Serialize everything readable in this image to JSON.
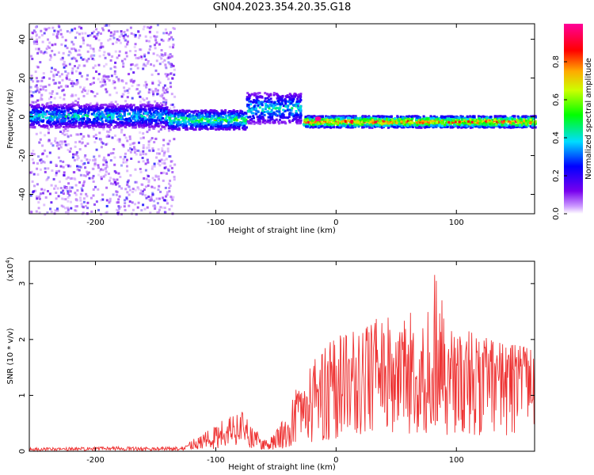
{
  "figure": {
    "title": "GN04.2023.354.20.35.G18"
  },
  "chart_data": [
    {
      "type": "heatmap",
      "title": "GN04.2023.354.20.35.G18",
      "xlabel": "Height of straight line (km)",
      "ylabel": "Frequency (Hz)",
      "xlim": [
        -255,
        165
      ],
      "ylim": [
        -50,
        48
      ],
      "x_ticks": [
        -200,
        -100,
        0,
        100
      ],
      "x_tick_labels": [
        "-200",
        "-100",
        "0",
        "100"
      ],
      "y_ticks": [
        -40,
        -20,
        0,
        20,
        40
      ],
      "y_tick_labels": [
        "-40",
        "-20",
        "0",
        "20",
        "40"
      ],
      "colorbar": {
        "label": "Normalized spectral amplitude",
        "range": [
          0,
          1
        ],
        "ticks": [
          0.0,
          0.2,
          0.4,
          0.6,
          0.8
        ],
        "tick_labels": [
          "0.0",
          "0.2",
          "0.4",
          "0.6",
          "0.8"
        ],
        "colormap": "rainbow (purple-blue-cyan-green-yellow-red-magenta)"
      },
      "main_band": {
        "description": "signal trace centered near 0 Hz",
        "segments": [
          {
            "x": [
              -255,
              -140
            ],
            "center_hz": 1,
            "halfwidth_hz": 6,
            "amplitude": [
              0.2,
              0.5
            ]
          },
          {
            "x": [
              -140,
              -75
            ],
            "center_hz": -1,
            "halfwidth_hz": 5,
            "amplitude": [
              0.3,
              0.6
            ]
          },
          {
            "x": [
              -75,
              -30
            ],
            "center_hz": 5,
            "halfwidth_hz": 8,
            "amplitude": [
              0.2,
              0.5
            ]
          },
          {
            "x": [
              -28,
              165
            ],
            "center_hz": -2,
            "halfwidth_hz": 3,
            "amplitude": [
              0.4,
              1.0
            ]
          }
        ],
        "peak": {
          "x": -15,
          "y": -1,
          "amplitude": 1.0
        }
      },
      "noise_region": {
        "x": [
          -255,
          -135
        ],
        "y": [
          -50,
          48
        ],
        "amplitude": [
          0.0,
          0.25
        ]
      },
      "grid": false
    },
    {
      "type": "line",
      "xlabel": "Height of straight line (km)",
      "ylabel": "SNR (10 * v/v)",
      "multiplier": "(x10",
      "multiplier_exp": "4",
      "multiplier_close": ")",
      "xlim": [
        -255,
        165
      ],
      "ylim": [
        0,
        3.4
      ],
      "x_ticks": [
        -200,
        -100,
        0,
        100
      ],
      "x_tick_labels": [
        "-200",
        "-100",
        "0",
        "100"
      ],
      "y_ticks": [
        0,
        1,
        2,
        3
      ],
      "y_tick_labels": [
        "0",
        "1",
        "2",
        "3"
      ],
      "series": [
        {
          "color": "#ee3333",
          "x": [
            -255,
            -220,
            -180,
            -150,
            -130,
            -120,
            -100,
            -90,
            -80,
            -70,
            -60,
            -50,
            -40,
            -30,
            -20,
            -10,
            0,
            10,
            20,
            30,
            40,
            50,
            60,
            70,
            80,
            90,
            100,
            110,
            120,
            130,
            140,
            150,
            160,
            165
          ],
          "y": [
            0.03,
            0.04,
            0.05,
            0.04,
            0.05,
            0.1,
            0.2,
            0.3,
            0.35,
            0.25,
            0.1,
            0.15,
            0.3,
            0.55,
            0.8,
            0.95,
            1.1,
            1.3,
            1.15,
            1.4,
            1.3,
            1.45,
            1.55,
            1.3,
            1.5,
            1.35,
            1.45,
            1.35,
            1.3,
            1.4,
            1.35,
            1.45,
            1.4,
            1.4
          ],
          "peak_envelope": [
            0.06,
            0.07,
            0.08,
            0.07,
            0.08,
            0.2,
            0.45,
            0.65,
            0.75,
            0.5,
            0.2,
            0.35,
            0.7,
            1.3,
            1.6,
            1.9,
            2.0,
            2.2,
            2.05,
            2.35,
            2.4,
            2.55,
            2.6,
            2.6,
            3.3,
            2.55,
            2.3,
            2.15,
            2.05,
            2.0,
            1.9,
            1.9,
            1.85,
            1.85
          ]
        }
      ],
      "grid": false
    }
  ]
}
